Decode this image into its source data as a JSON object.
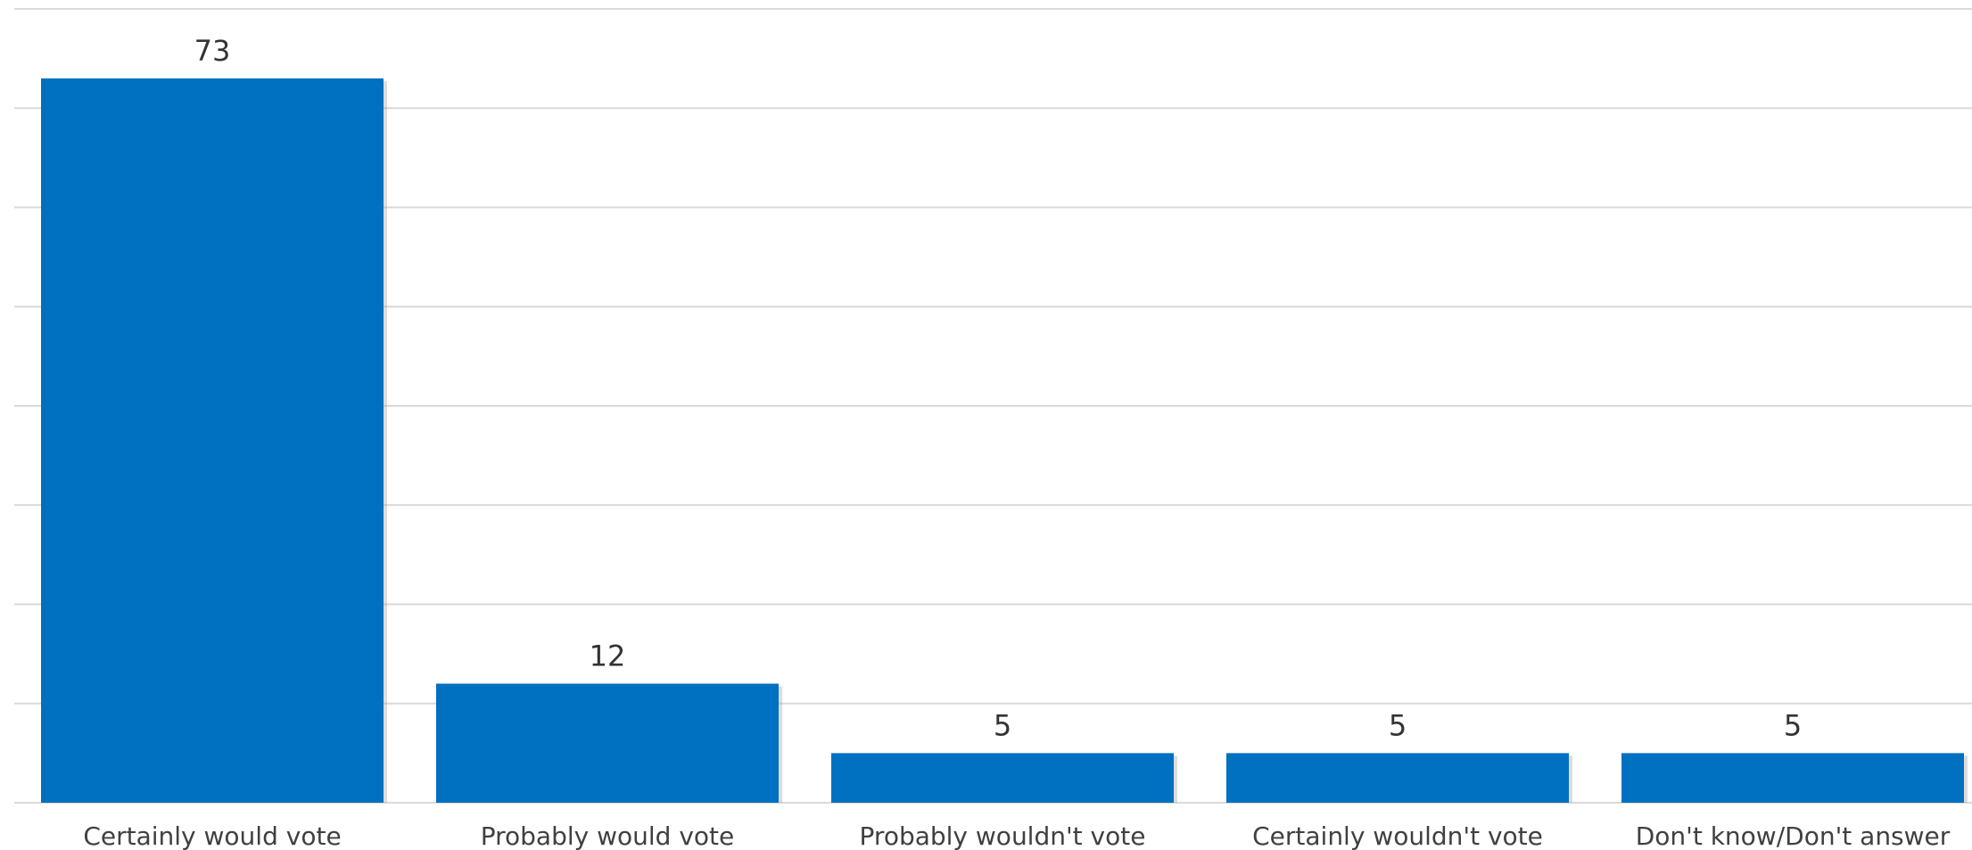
{
  "chart_data": {
    "type": "bar",
    "categories": [
      "Certainly would vote",
      "Probably would vote",
      "Probably wouldn't vote",
      "Certainly wouldn't vote",
      "Don't know/Don't answer"
    ],
    "values": [
      73,
      12,
      5,
      5,
      5
    ],
    "ylim": [
      0,
      80
    ],
    "grid": true,
    "data_labels": true,
    "bar_color": "#0070C0",
    "grid_color": "#d9d9d9",
    "text_color": "#404040"
  }
}
